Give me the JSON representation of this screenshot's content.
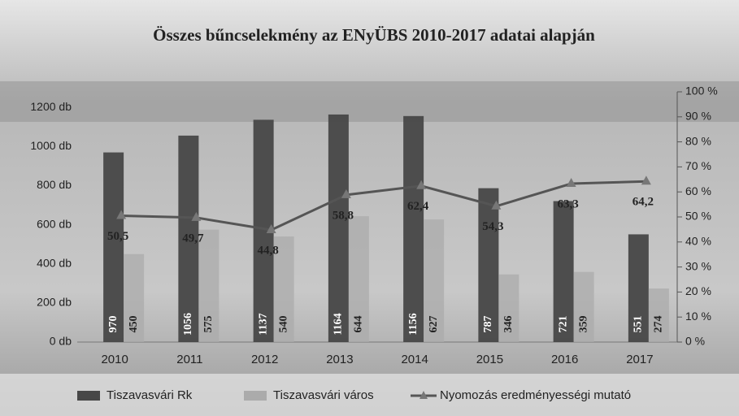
{
  "chart_data": {
    "type": "bar-line",
    "title": "Összes bűncselekmény az ENyÜBS 2010-2017 adatai alapján",
    "categories": [
      "2010",
      "2011",
      "2012",
      "2013",
      "2014",
      "2015",
      "2016",
      "2017"
    ],
    "series": [
      {
        "name": "Tiszavasvári Rk",
        "color": "#474747",
        "values": [
          970,
          1056,
          1137,
          1164,
          1156,
          787,
          721,
          551
        ]
      },
      {
        "name": "Tiszavasvári város",
        "color": "#ababab",
        "values": [
          450,
          575,
          540,
          644,
          627,
          346,
          359,
          274
        ]
      },
      {
        "name": "Nyomozás eredményességi mutató",
        "color": "#555555",
        "axis": "y2",
        "values": [
          50.5,
          49.7,
          44.8,
          58.8,
          62.4,
          54.3,
          63.3,
          64.2
        ],
        "value_labels": [
          "50,5",
          "49,7",
          "44,8",
          "58,8",
          "62,4",
          "54,3",
          "63,3",
          "64,2"
        ]
      }
    ],
    "ylim": [
      0,
      1280
    ],
    "yticks": [
      {
        "value": 0,
        "label": "0 db"
      },
      {
        "value": 200,
        "label": "200 db"
      },
      {
        "value": 400,
        "label": "400 db"
      },
      {
        "value": 600,
        "label": "600 db"
      },
      {
        "value": 800,
        "label": "800 db"
      },
      {
        "value": 1000,
        "label": "1000 db"
      },
      {
        "value": 1200,
        "label": "1200 db"
      }
    ],
    "y2lim": [
      0,
      100
    ],
    "y2ticks": [
      {
        "value": 0,
        "label": "0 %"
      },
      {
        "value": 10,
        "label": "10 %"
      },
      {
        "value": 20,
        "label": "20 %"
      },
      {
        "value": 30,
        "label": "30 %"
      },
      {
        "value": 40,
        "label": "40 %"
      },
      {
        "value": 50,
        "label": "50 %"
      },
      {
        "value": 60,
        "label": "60 %"
      },
      {
        "value": 70,
        "label": "70 %"
      },
      {
        "value": 80,
        "label": "80 %"
      },
      {
        "value": 90,
        "label": "90 %"
      },
      {
        "value": 100,
        "label": "100 %"
      }
    ],
    "legend": "bottom"
  }
}
